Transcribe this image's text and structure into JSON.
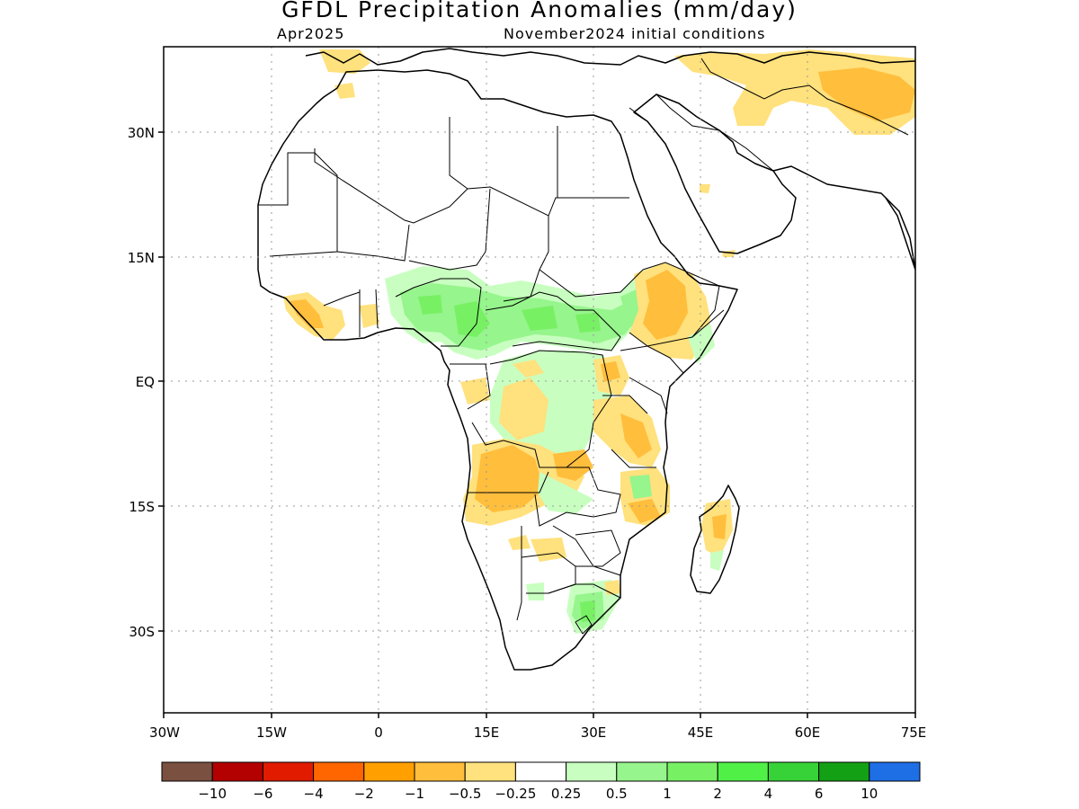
{
  "header": {
    "title": "GFDL Precipitation Anomalies (mm/day)",
    "month": "Apr2025",
    "init": "November2024 initial conditions"
  },
  "axes": {
    "lat_labels": [
      "30N",
      "15N",
      "EQ",
      "15S",
      "30S"
    ],
    "lon_labels": [
      "30W",
      "15W",
      "0",
      "15E",
      "30E",
      "45E",
      "60E",
      "75E"
    ],
    "lat_range": [
      -40,
      40
    ],
    "lon_range": [
      -30,
      75
    ],
    "grid": "dotted"
  },
  "colorbar": {
    "colors": [
      "#7a5040",
      "#b30000",
      "#e01b00",
      "#ff6600",
      "#ffa000",
      "#ffbe3c",
      "#ffe17d",
      "#ffffff",
      "#c8ffc0",
      "#96f58c",
      "#78f064",
      "#50f046",
      "#37d237",
      "#14a014",
      "#1e6ee6"
    ],
    "labels": [
      "-10",
      "-6",
      "-4",
      "-2",
      "-1",
      "-0.5",
      "-0.25",
      "0.25",
      "0.5",
      "1",
      "2",
      "4",
      "6",
      "10"
    ]
  },
  "anomalies": [
    {
      "region": "Gulf of Guinea / Sahel belt",
      "category": "0.5"
    },
    {
      "region": "Central African Republic / South Sudan",
      "category": "1"
    },
    {
      "region": "Angola",
      "category": "-1"
    },
    {
      "region": "Ethiopian Highlands",
      "category": "-1"
    },
    {
      "region": "Congo basin east",
      "category": "-0.5"
    },
    {
      "region": "Mozambique coast",
      "category": "-0.5"
    },
    {
      "region": "Madagascar",
      "category": "-0.5"
    },
    {
      "region": "Lesotho / eastern South Africa",
      "category": "0.5"
    },
    {
      "region": "Iran / Afghanistan",
      "category": "-0.5"
    }
  ]
}
